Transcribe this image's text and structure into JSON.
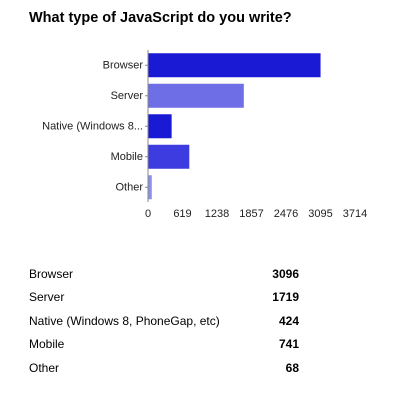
{
  "chart_data": {
    "type": "bar",
    "orientation": "horizontal",
    "title": "What type of JavaScript do you write?",
    "categories": [
      "Browser",
      "Server",
      "Native (Windows 8...",
      "Mobile",
      "Other"
    ],
    "values": [
      3096,
      1719,
      424,
      741,
      68
    ],
    "bar_colors": [
      "#1a1ad4",
      "#6e6ee6",
      "#1a1ad4",
      "#3c3ce0",
      "#8e8ef0"
    ],
    "xlim": [
      0,
      3714
    ],
    "xticks": [
      "0",
      "619",
      "1238",
      "1857",
      "2476",
      "3095",
      "3714"
    ],
    "grid": false,
    "legend": "none"
  },
  "summary": {
    "rows": [
      {
        "label": "Browser",
        "value": "3096"
      },
      {
        "label": "Server",
        "value": "1719"
      },
      {
        "label": "Native (Windows 8, PhoneGap, etc)",
        "value": "424"
      },
      {
        "label": "Mobile",
        "value": "741"
      },
      {
        "label": "Other",
        "value": "68"
      }
    ]
  }
}
